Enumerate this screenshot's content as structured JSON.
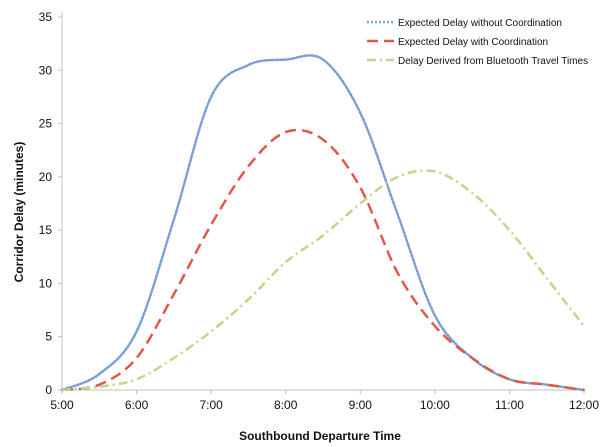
{
  "chart_data": {
    "type": "line",
    "title": "",
    "xlabel": "Southbound Departure Time",
    "ylabel": "Corridor Delay (minutes)",
    "x": [
      5,
      5.5,
      6,
      6.5,
      7,
      7.5,
      8,
      8.5,
      9,
      9.5,
      10,
      10.5,
      11,
      11.5,
      12
    ],
    "x_tick_values": [
      5,
      6,
      7,
      8,
      9,
      10,
      11,
      12
    ],
    "x_tick_labels": [
      "5:00",
      "6:00",
      "7:00",
      "8:00",
      "9:00",
      "10:00",
      "11:00",
      "12:00"
    ],
    "xlim": [
      5,
      12
    ],
    "y_ticks": [
      0,
      5,
      10,
      15,
      20,
      25,
      30,
      35
    ],
    "ylim": [
      0,
      35
    ],
    "grid": false,
    "legend_position": "top-right",
    "series": [
      {
        "name": "Expected Delay without Coordination",
        "color": "#7b9fd4",
        "style": "dotted",
        "values": [
          0,
          1.5,
          5.5,
          16,
          27.5,
          30.5,
          31,
          31,
          26,
          16.5,
          7,
          3,
          1,
          0.5,
          0
        ]
      },
      {
        "name": "Expected Delay with Coordination",
        "color": "#e0584a",
        "style": "dashed",
        "values": [
          0,
          0.5,
          3,
          9,
          15.5,
          21,
          24.2,
          23.5,
          19,
          11,
          6,
          3,
          1,
          0.5,
          0
        ]
      },
      {
        "name": "Delay Derived from Bluetooth Travel Times",
        "color": "#c4d48a",
        "style": "dash-dot",
        "values": [
          0,
          0.3,
          1,
          3,
          5.5,
          8.5,
          12,
          14.5,
          17.5,
          20,
          20.5,
          18.5,
          15,
          10.5,
          6
        ]
      }
    ]
  }
}
